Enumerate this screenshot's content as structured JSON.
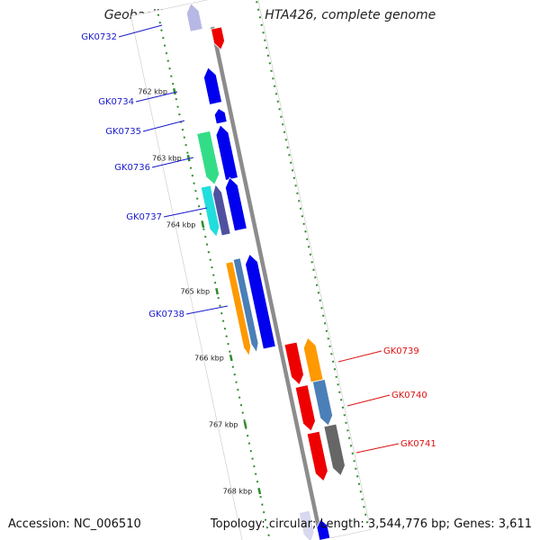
{
  "title": "Geobacillus kaustophilus HTA426, complete genome",
  "footer": {
    "accession": "Accession: NC_006510",
    "topology": "Topology: circular; Length: 3,544,776 bp; Genes: 3,611"
  },
  "colors": {
    "backbone": "#8c8c8c",
    "tick": "#2e8b2e",
    "forward_label": "#1a1acc",
    "reverse_label": "#dd1111",
    "red": "#ee0000",
    "blue": "#0000ee",
    "orange": "#ff9900",
    "steelblue": "#4a7fb8",
    "gray": "#666666",
    "seagreen": "#33dd88",
    "cyan": "#22dddd",
    "slate": "#5050a0"
  },
  "kbp_ticks": [
    {
      "text": "762 kbp",
      "kbp": 762
    },
    {
      "text": "763 kbp",
      "kbp": 763
    },
    {
      "text": "764 kbp",
      "kbp": 764
    },
    {
      "text": "765 kbp",
      "kbp": 765
    },
    {
      "text": "766 kbp",
      "kbp": 766
    },
    {
      "text": "767 kbp",
      "kbp": 767
    },
    {
      "text": "768 kbp",
      "kbp": 768
    }
  ],
  "gene_labels": [
    {
      "text": "GK0732",
      "strand": "forward"
    },
    {
      "text": "GK0734",
      "strand": "forward"
    },
    {
      "text": "GK0735",
      "strand": "forward"
    },
    {
      "text": "GK0736",
      "strand": "forward"
    },
    {
      "text": "GK0737",
      "strand": "forward"
    },
    {
      "text": "GK0738",
      "strand": "forward"
    },
    {
      "text": "GK0739",
      "strand": "reverse"
    },
    {
      "text": "GK0740",
      "strand": "reverse"
    },
    {
      "text": "GK0741",
      "strand": "reverse"
    }
  ]
}
